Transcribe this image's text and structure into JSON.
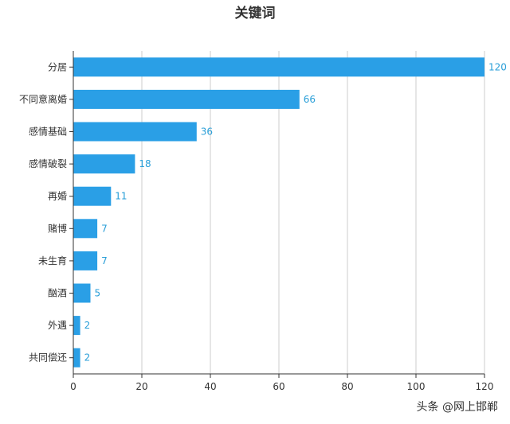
{
  "watermark": "头条 @网上邯郸",
  "colors": {
    "bar": "#2a9fe6",
    "data_label": "#2a9fd8",
    "grid": "#cccccc",
    "axis": "#333333",
    "text": "#333333"
  },
  "chart_data": {
    "type": "bar",
    "orientation": "horizontal",
    "title": "关键词",
    "xlabel": "",
    "ylabel": "",
    "categories": [
      "分居",
      "不同意离婚",
      "感情基础",
      "感情破裂",
      "再婚",
      "赌博",
      "未生育",
      "酗酒",
      "外遇",
      "共同偿还"
    ],
    "values": [
      120,
      66,
      36,
      18,
      11,
      7,
      7,
      5,
      2,
      2
    ],
    "xlim": [
      0,
      120
    ],
    "xticks": [
      0,
      20,
      40,
      60,
      80,
      100,
      120
    ],
    "grid": "vertical",
    "legend": "none",
    "data_labels": true
  }
}
